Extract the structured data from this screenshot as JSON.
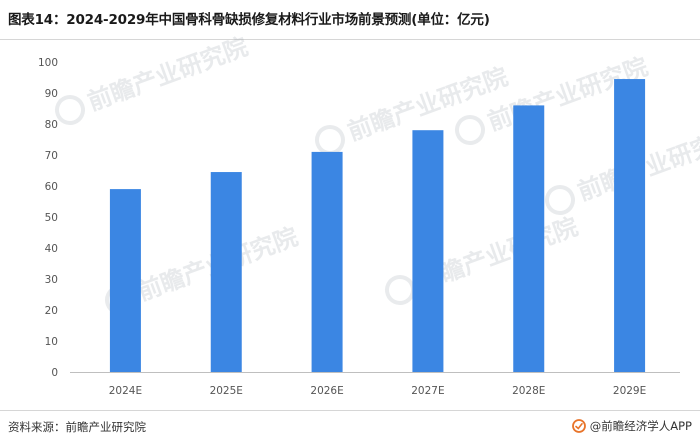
{
  "title": "图表14：2024-2029年中国骨科骨缺损修复材料行业市场前景预测(单位：亿元)",
  "footer": {
    "source": "资料来源：前瞻产业研究院",
    "brand": "@前瞻经济学人APP"
  },
  "watermark": {
    "text": "前瞻产业研究院"
  },
  "colors": {
    "bar": "#3b86e3",
    "axis": "#bfbfbf",
    "text": "#555555"
  },
  "chart_data": {
    "type": "bar",
    "categories": [
      "2024E",
      "2025E",
      "2026E",
      "2027E",
      "2028E",
      "2029E"
    ],
    "values": [
      59,
      64.5,
      71,
      78,
      86,
      94.5
    ],
    "ylim": [
      0,
      100
    ],
    "yticks": [
      0,
      10,
      20,
      30,
      40,
      50,
      60,
      70,
      80,
      90,
      100
    ],
    "grid": false,
    "title": "",
    "xlabel": "",
    "ylabel": ""
  }
}
